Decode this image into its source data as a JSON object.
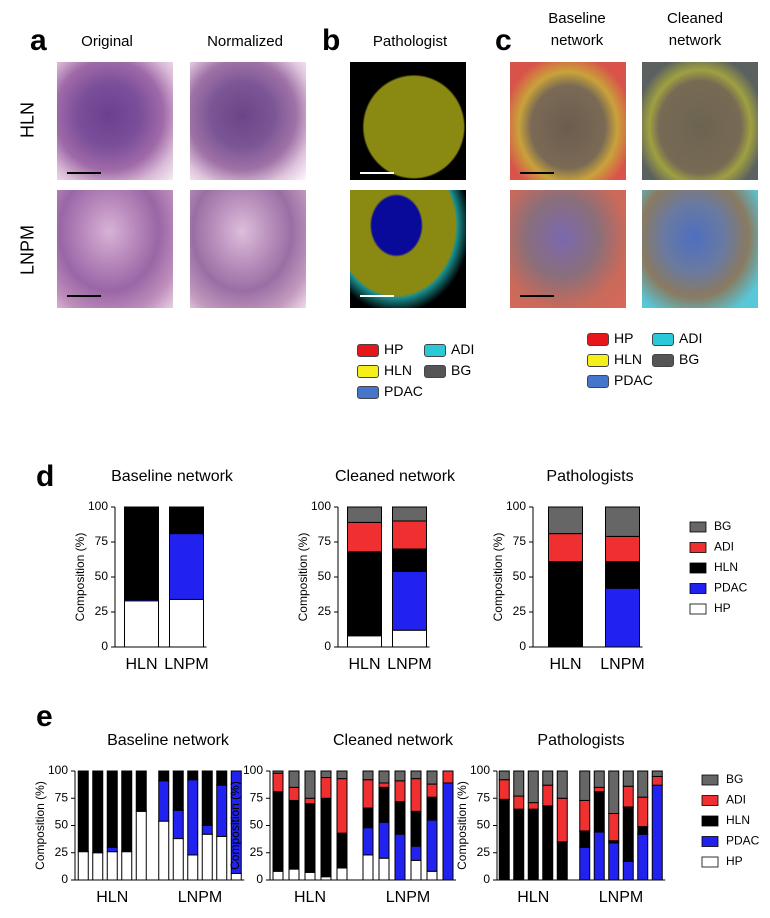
{
  "panels": {
    "rows": [
      "HLN",
      "LNPM"
    ],
    "a": {
      "letter": "a",
      "columns": [
        "Original",
        "Normalized"
      ]
    },
    "b": {
      "letter": "b",
      "columns": [
        "Pathologist"
      ],
      "legend": [
        {
          "label": "HP",
          "color": "#e8161b"
        },
        {
          "label": "ADI",
          "color": "#29c9d8"
        },
        {
          "label": "HLN",
          "color": "#f5f01a"
        },
        {
          "label": "BG",
          "color": "#555555"
        },
        {
          "label": "PDAC",
          "color": "#4477cc"
        }
      ]
    },
    "c": {
      "letter": "c",
      "columns": [
        "Baseline network",
        "Cleaned network"
      ],
      "legend": [
        {
          "label": "HP",
          "color": "#e8161b"
        },
        {
          "label": "ADI",
          "color": "#29c9d8"
        },
        {
          "label": "HLN",
          "color": "#f5f01a"
        },
        {
          "label": "BG",
          "color": "#555555"
        },
        {
          "label": "PDAC",
          "color": "#4477cc"
        }
      ]
    },
    "d": {
      "letter": "d"
    },
    "e": {
      "letter": "e"
    }
  },
  "chart_data": [
    {
      "type": "bar",
      "stacked": true,
      "title": "Baseline network",
      "ylabel": "Composition (%)",
      "categories": [
        "HLN",
        "LNPM"
      ],
      "ylim": [
        0,
        100
      ],
      "yticks": [
        0,
        25,
        50,
        75,
        100
      ],
      "series": [
        {
          "name": "HP",
          "color": "#ffffff",
          "values": [
            33,
            34
          ]
        },
        {
          "name": "PDAC",
          "color": "#2222f0",
          "values": [
            1,
            47
          ]
        },
        {
          "name": "HLN",
          "color": "#000000",
          "values": [
            66,
            19
          ]
        },
        {
          "name": "ADI",
          "color": "#f03030",
          "values": [
            0,
            0
          ]
        },
        {
          "name": "BG",
          "color": "#666666",
          "values": [
            0,
            0
          ]
        }
      ]
    },
    {
      "type": "bar",
      "stacked": true,
      "title": "Cleaned network",
      "ylabel": "Composition (%)",
      "categories": [
        "HLN",
        "LNPM"
      ],
      "ylim": [
        0,
        100
      ],
      "yticks": [
        0,
        25,
        50,
        75,
        100
      ],
      "series": [
        {
          "name": "HP",
          "color": "#ffffff",
          "values": [
            8,
            12
          ]
        },
        {
          "name": "PDAC",
          "color": "#2222f0",
          "values": [
            0,
            42
          ]
        },
        {
          "name": "HLN",
          "color": "#000000",
          "values": [
            60,
            16
          ]
        },
        {
          "name": "ADI",
          "color": "#f03030",
          "values": [
            21,
            20
          ]
        },
        {
          "name": "BG",
          "color": "#666666",
          "values": [
            11,
            10
          ]
        }
      ]
    },
    {
      "type": "bar",
      "stacked": true,
      "title": "Pathologists",
      "ylabel": "Composition (%)",
      "categories": [
        "HLN",
        "LNPM"
      ],
      "ylim": [
        0,
        100
      ],
      "yticks": [
        0,
        25,
        50,
        75,
        100
      ],
      "legend": "right",
      "series": [
        {
          "name": "HP",
          "color": "#ffffff",
          "values": [
            0,
            0
          ]
        },
        {
          "name": "PDAC",
          "color": "#2222f0",
          "values": [
            0,
            42
          ]
        },
        {
          "name": "HLN",
          "color": "#000000",
          "values": [
            61,
            19
          ]
        },
        {
          "name": "ADI",
          "color": "#f03030",
          "values": [
            20,
            18
          ]
        },
        {
          "name": "BG",
          "color": "#666666",
          "values": [
            19,
            21
          ]
        }
      ]
    },
    {
      "type": "bar",
      "stacked": true,
      "title": "Baseline network",
      "ylabel": "Composition (%)",
      "categories": [
        "HLN",
        null,
        null,
        null,
        null,
        "LNPM",
        null,
        null,
        null,
        null,
        null
      ],
      "ylim": [
        0,
        100
      ],
      "yticks": [
        0,
        25,
        50,
        75,
        100
      ],
      "series": [
        {
          "name": "HP",
          "color": "#ffffff",
          "values": [
            26,
            25,
            26,
            26,
            63,
            54,
            38,
            23,
            42,
            40,
            6
          ]
        },
        {
          "name": "PDAC",
          "color": "#2222f0",
          "values": [
            0,
            0,
            4,
            0,
            0,
            37,
            26,
            69,
            8,
            47,
            94
          ]
        },
        {
          "name": "HLN",
          "color": "#000000",
          "values": [
            74,
            75,
            70,
            74,
            37,
            9,
            36,
            8,
            50,
            13,
            0
          ]
        },
        {
          "name": "ADI",
          "color": "#f03030",
          "values": [
            0,
            0,
            0,
            0,
            0,
            0,
            0,
            0,
            0,
            0,
            0
          ]
        },
        {
          "name": "BG",
          "color": "#666666",
          "values": [
            0,
            0,
            0,
            0,
            0,
            0,
            0,
            0,
            0,
            0,
            0
          ]
        }
      ]
    },
    {
      "type": "bar",
      "stacked": true,
      "title": "Cleaned network",
      "ylabel": "Composition (%)",
      "categories": [
        "HLN",
        null,
        null,
        null,
        null,
        "LNPM",
        null,
        null,
        null,
        null,
        null
      ],
      "ylim": [
        0,
        100
      ],
      "yticks": [
        0,
        25,
        50,
        75,
        100
      ],
      "series": [
        {
          "name": "HP",
          "color": "#ffffff",
          "values": [
            8,
            10,
            7,
            3,
            11,
            23,
            20,
            0,
            18,
            8,
            0
          ]
        },
        {
          "name": "PDAC",
          "color": "#2222f0",
          "values": [
            0,
            0,
            0,
            0,
            0,
            25,
            33,
            42,
            13,
            47,
            89
          ]
        },
        {
          "name": "HLN",
          "color": "#000000",
          "values": [
            73,
            63,
            63,
            72,
            32,
            18,
            32,
            30,
            32,
            21,
            0
          ]
        },
        {
          "name": "ADI",
          "color": "#f03030",
          "values": [
            17,
            12,
            5,
            19,
            50,
            26,
            4,
            19,
            30,
            12,
            11
          ]
        },
        {
          "name": "BG",
          "color": "#666666",
          "values": [
            2,
            15,
            25,
            6,
            7,
            8,
            11,
            9,
            7,
            12,
            0
          ]
        }
      ]
    },
    {
      "type": "bar",
      "stacked": true,
      "title": "Pathologists",
      "ylabel": "Composition (%)",
      "categories": [
        "HLN",
        null,
        null,
        null,
        null,
        "LNPM",
        null,
        null,
        null,
        null,
        null
      ],
      "ylim": [
        0,
        100
      ],
      "yticks": [
        0,
        25,
        50,
        75,
        100
      ],
      "legend": "right",
      "series": [
        {
          "name": "HP",
          "color": "#ffffff",
          "values": [
            0,
            0,
            0,
            0,
            0,
            0,
            0,
            0,
            0,
            0,
            0
          ]
        },
        {
          "name": "PDAC",
          "color": "#2222f0",
          "values": [
            0,
            0,
            0,
            0,
            0,
            30,
            44,
            34,
            17,
            42,
            87
          ]
        },
        {
          "name": "HLN",
          "color": "#000000",
          "values": [
            74,
            65,
            65,
            68,
            35,
            15,
            37,
            2,
            50,
            7,
            0
          ]
        },
        {
          "name": "ADI",
          "color": "#f03030",
          "values": [
            18,
            12,
            6,
            19,
            40,
            28,
            4,
            25,
            19,
            27,
            8
          ]
        },
        {
          "name": "BG",
          "color": "#666666",
          "values": [
            8,
            23,
            29,
            13,
            25,
            27,
            15,
            39,
            14,
            24,
            5
          ]
        }
      ]
    }
  ]
}
